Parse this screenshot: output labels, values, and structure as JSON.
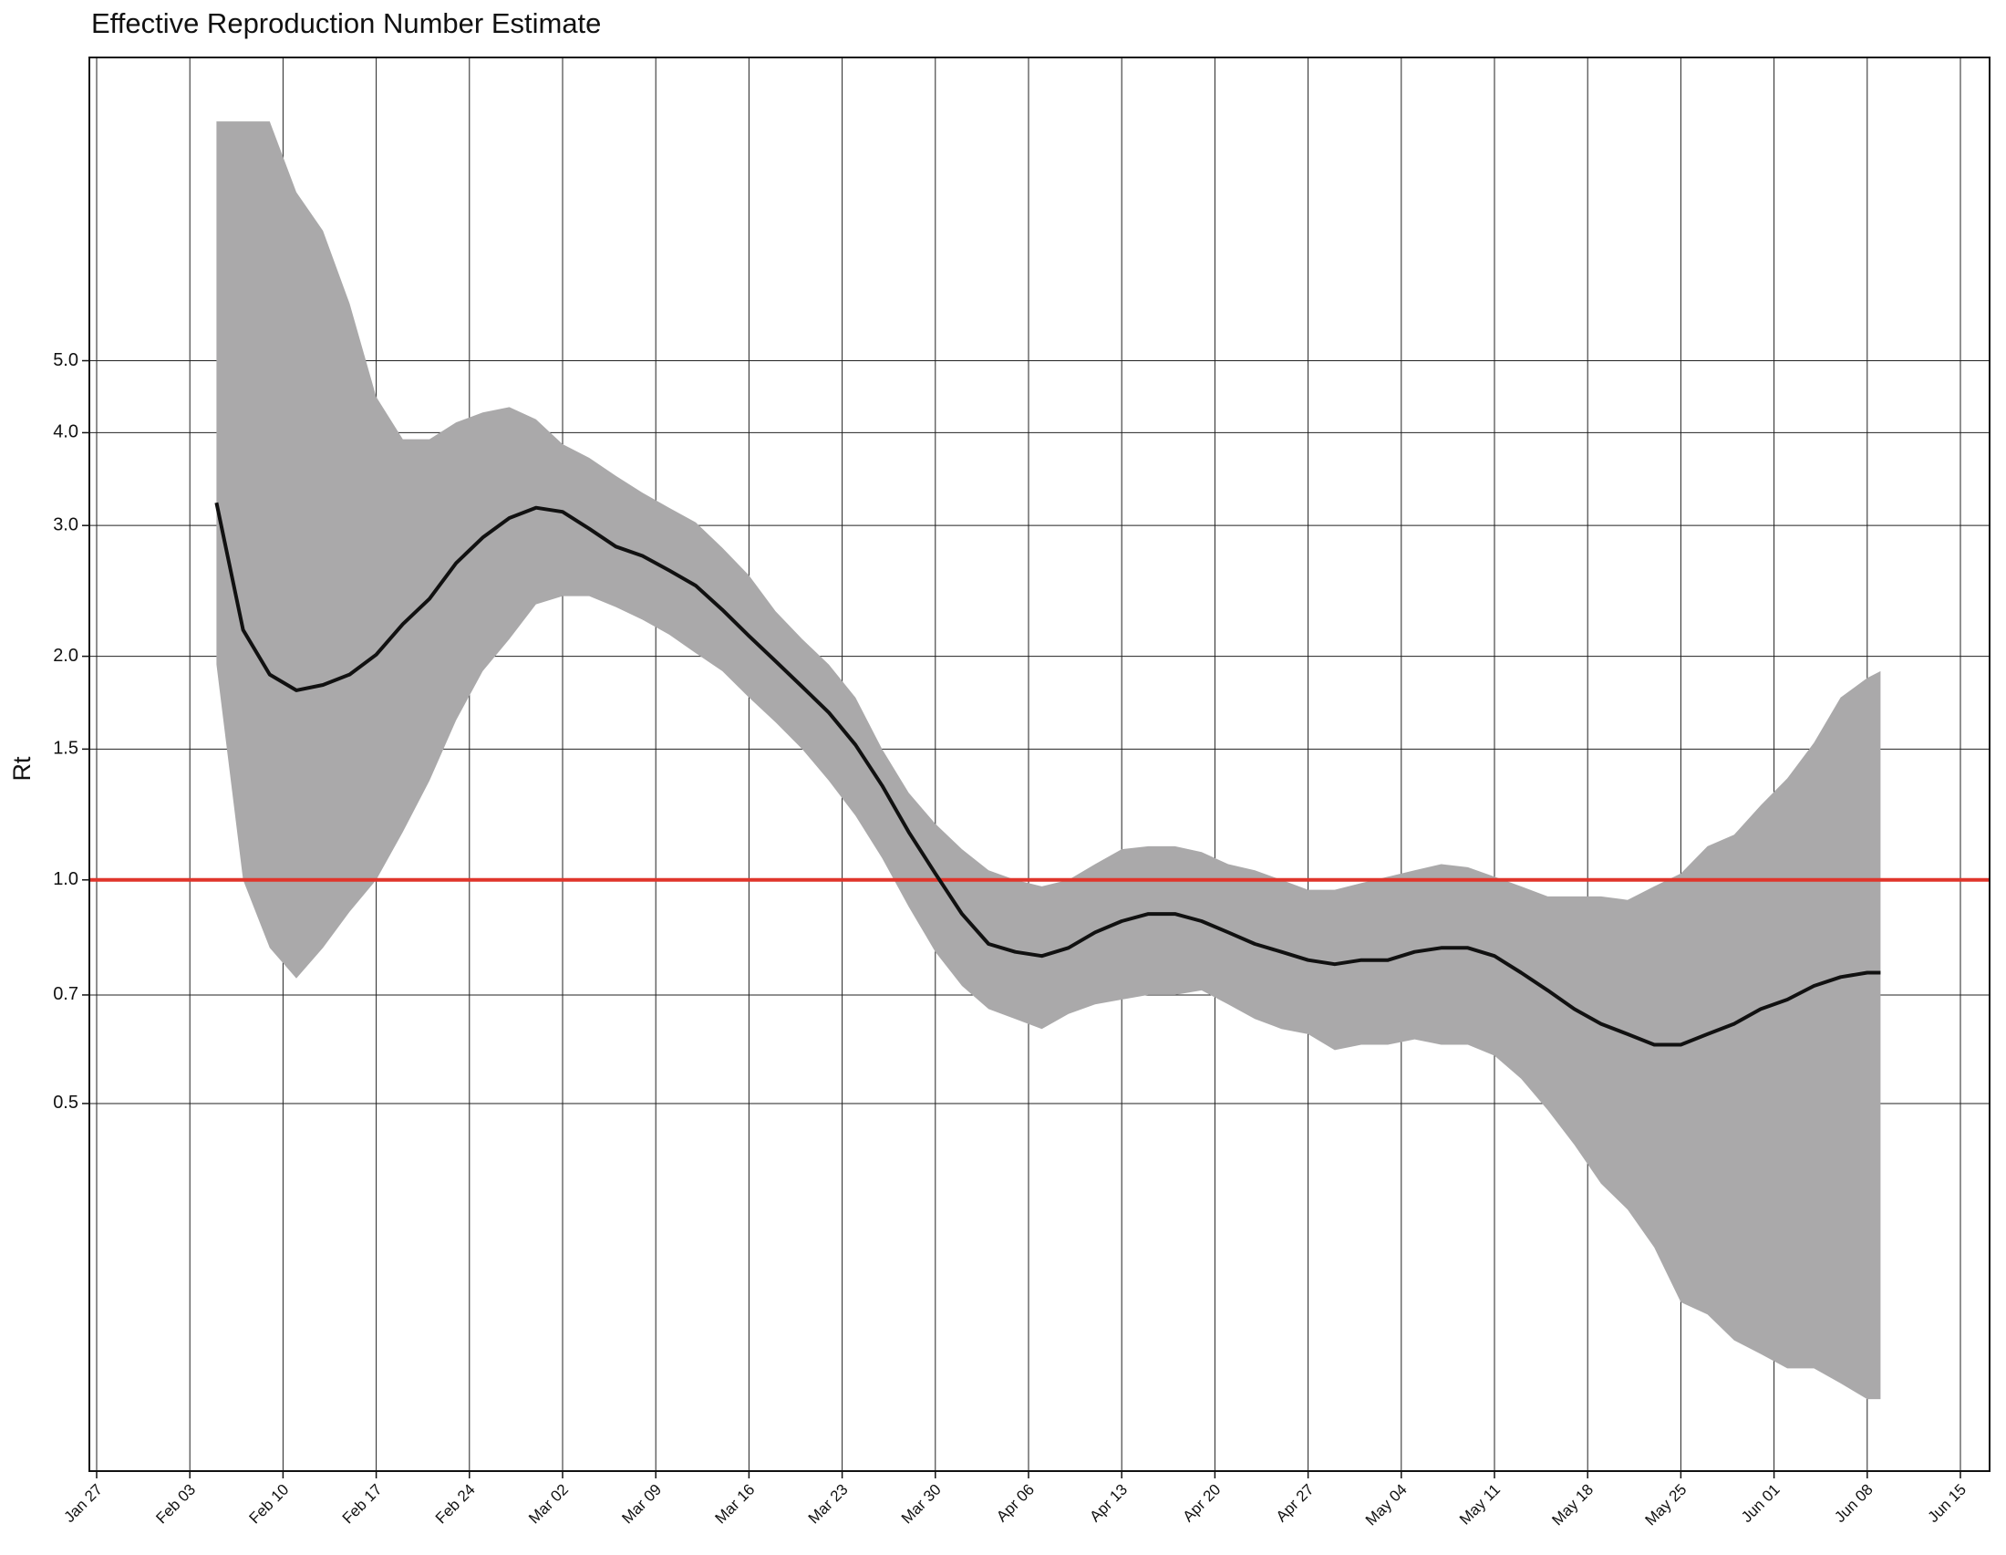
{
  "chart_data": {
    "type": "line",
    "title": "Effective Reproduction Number Estimate",
    "y_label": "Rt",
    "y_log": true,
    "grid": true,
    "ylim": [
      0.16,
      12.8
    ],
    "yticks": [
      0.5,
      0.7,
      {
        "value": 1,
        "label": "1.0"
      },
      1.5,
      {
        "value": 2,
        "label": "2.0"
      },
      {
        "value": 3,
        "label": "3.0"
      },
      {
        "value": 4,
        "label": "4.0"
      },
      {
        "value": 5,
        "label": "5.0"
      }
    ],
    "xlim": [
      "Jan 27",
      "Jun 15"
    ],
    "xticks": [
      "Jan 27",
      "Feb 03",
      "Feb 10",
      "Feb 17",
      "Feb 24",
      "Mar 02",
      "Mar 09",
      "Mar 16",
      "Mar 23",
      "Mar 30",
      "Apr 06",
      "Apr 13",
      "Apr 20",
      "Apr 27",
      "May 04",
      "May 11",
      "May 18",
      "May 25",
      "Jun 01",
      "Jun 08",
      "Jun 15"
    ],
    "reference_line": {
      "value": 1,
      "color": "#e0352b"
    },
    "x": [
      "Feb 05",
      "Feb 07",
      "Feb 09",
      "Feb 11",
      "Feb 13",
      "Feb 15",
      "Feb 17",
      "Feb 19",
      "Feb 21",
      "Feb 23",
      "Feb 25",
      "Feb 27",
      "Feb 29",
      "Mar 02",
      "Mar 04",
      "Mar 06",
      "Mar 08",
      "Mar 10",
      "Mar 12",
      "Mar 14",
      "Mar 16",
      "Mar 18",
      "Mar 20",
      "Mar 22",
      "Mar 24",
      "Mar 26",
      "Mar 28",
      "Mar 30",
      "Apr 01",
      "Apr 03",
      "Apr 05",
      "Apr 07",
      "Apr 09",
      "Apr 11",
      "Apr 13",
      "Apr 15",
      "Apr 17",
      "Apr 19",
      "Apr 21",
      "Apr 23",
      "Apr 25",
      "Apr 27",
      "Apr 29",
      "May 01",
      "May 03",
      "May 05",
      "May 07",
      "May 09",
      "May 11",
      "May 13",
      "May 15",
      "May 17",
      "May 19",
      "May 21",
      "May 23",
      "May 25",
      "May 27",
      "May 29",
      "May 31",
      "Jun 02",
      "Jun 04",
      "Jun 06",
      "Jun 08",
      "Jun 09"
    ],
    "series": [
      {
        "color": "#111111",
        "values": [
          3.22,
          2.17,
          1.89,
          1.8,
          1.83,
          1.89,
          2.01,
          2.21,
          2.39,
          2.67,
          2.89,
          3.07,
          3.17,
          3.13,
          2.97,
          2.81,
          2.73,
          2.61,
          2.49,
          2.31,
          2.13,
          1.97,
          1.82,
          1.68,
          1.52,
          1.34,
          1.16,
          1.02,
          0.9,
          0.82,
          0.8,
          0.79,
          0.81,
          0.85,
          0.88,
          0.9,
          0.9,
          0.88,
          0.85,
          0.82,
          0.8,
          0.78,
          0.77,
          0.78,
          0.78,
          0.8,
          0.81,
          0.81,
          0.79,
          0.75,
          0.71,
          0.67,
          0.64,
          0.62,
          0.6,
          0.6,
          0.62,
          0.64,
          0.67,
          0.69,
          0.72,
          0.74,
          0.75,
          0.75
        ]
      }
    ],
    "band": {
      "color": "#aaa9aa",
      "lower": [
        1.95,
        1.0,
        0.81,
        0.737,
        0.81,
        0.906,
        1.0,
        1.16,
        1.36,
        1.64,
        1.91,
        2.11,
        2.35,
        2.41,
        2.41,
        2.33,
        2.24,
        2.14,
        2.02,
        1.91,
        1.76,
        1.63,
        1.5,
        1.36,
        1.22,
        1.07,
        0.92,
        0.8,
        0.72,
        0.67,
        0.65,
        0.63,
        0.66,
        0.68,
        0.69,
        0.7,
        0.7,
        0.71,
        0.68,
        0.65,
        0.63,
        0.62,
        0.59,
        0.6,
        0.6,
        0.61,
        0.6,
        0.6,
        0.58,
        0.54,
        0.49,
        0.44,
        0.39,
        0.36,
        0.32,
        0.27,
        0.26,
        0.24,
        0.23,
        0.22,
        0.22,
        0.21,
        0.2,
        0.2
      ],
      "upper": [
        10.5,
        10.5,
        10.5,
        8.43,
        7.48,
        5.97,
        4.47,
        3.92,
        3.92,
        4.13,
        4.26,
        4.33,
        4.17,
        3.86,
        3.7,
        3.5,
        3.32,
        3.17,
        3.03,
        2.8,
        2.57,
        2.3,
        2.11,
        1.95,
        1.76,
        1.5,
        1.31,
        1.19,
        1.1,
        1.03,
        1.0,
        0.98,
        1.0,
        1.05,
        1.1,
        1.11,
        1.11,
        1.09,
        1.05,
        1.03,
        1.0,
        0.97,
        0.97,
        0.99,
        1.01,
        1.03,
        1.05,
        1.04,
        1.01,
        0.98,
        0.95,
        0.95,
        0.95,
        0.94,
        0.98,
        1.02,
        1.11,
        1.15,
        1.26,
        1.37,
        1.53,
        1.76,
        1.87,
        1.91
      ]
    }
  }
}
